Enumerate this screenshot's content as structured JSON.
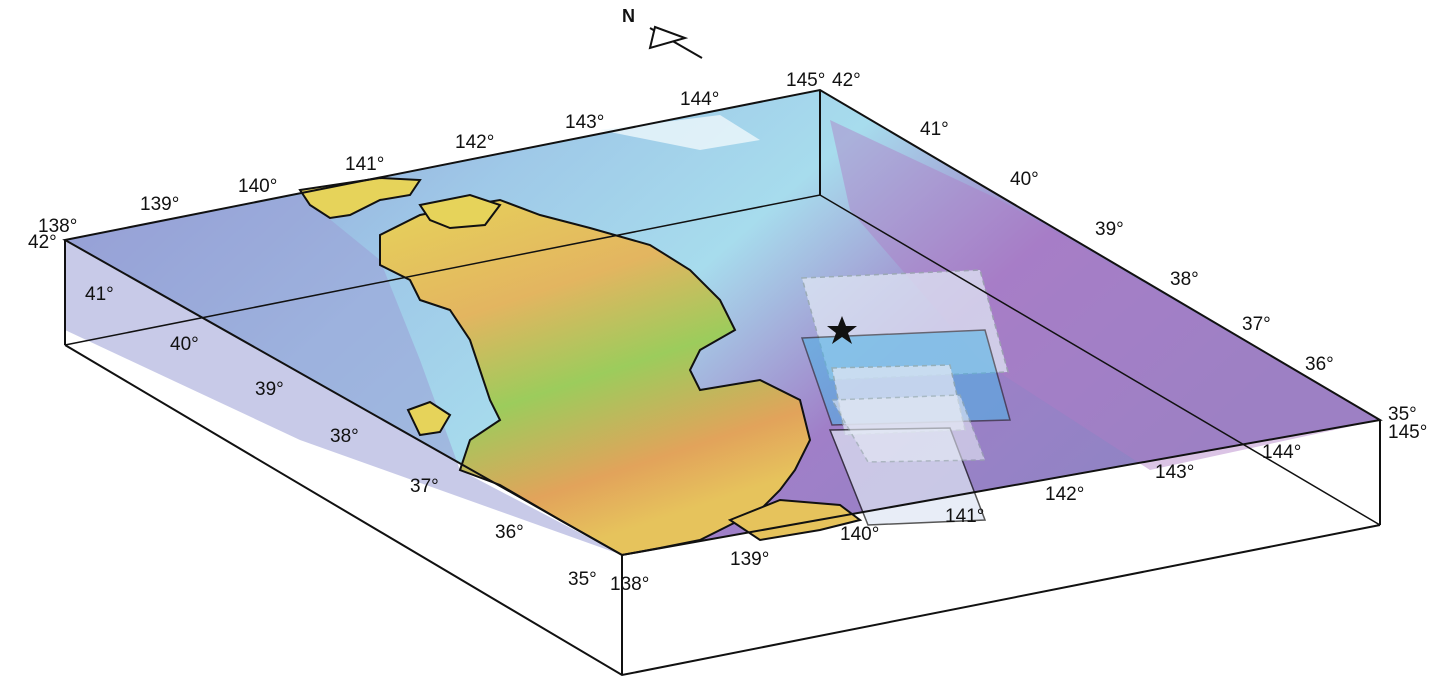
{
  "map": {
    "north_arrow": {
      "label": "N"
    },
    "top_corner_labels": {
      "nw_lon": "138°",
      "nw_lat": "42°",
      "ne_lon": "145°",
      "ne_lat": "42°",
      "se_lon": "145°",
      "se_lat": "35°"
    },
    "north_edge_lon_ticks": [
      "139°",
      "140°",
      "141°",
      "142°",
      "143°",
      "144°"
    ],
    "east_edge_lat_ticks": [
      "41°",
      "40°",
      "39°",
      "38°",
      "37°",
      "36°"
    ],
    "west_edge_lat_ticks": [
      "41°",
      "40°",
      "39°",
      "38°",
      "37°",
      "36°",
      "35°"
    ],
    "south_edge_lon_ticks": [
      "138°",
      "139°",
      "140°",
      "141°",
      "142°",
      "143°",
      "144°"
    ],
    "colors": {
      "deep_ocean": "#8f7fc2",
      "trench": "#b07cc6",
      "shelf": "#a7dced",
      "coast": "#e6f6fb",
      "lowland": "#87c55b",
      "upland": "#e6d35a",
      "highland": "#e3a65b",
      "fault_panel": "#bcd6f0",
      "fault_panel_deep": "#4cb3e6",
      "box_edge": "#111111"
    },
    "epicenter_symbol": "star-icon"
  }
}
